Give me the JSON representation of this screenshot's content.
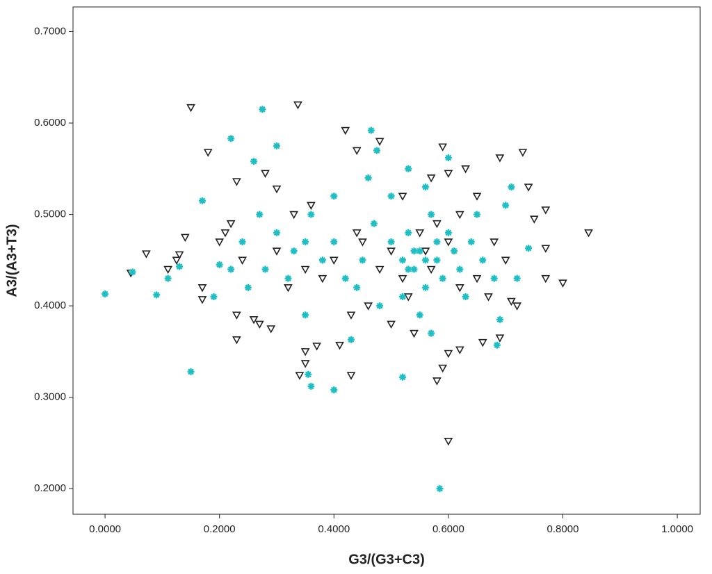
{
  "chart_data": {
    "type": "scatter",
    "xlabel": "G3/(G3+C3)",
    "ylabel": "A3/(A3+T3)",
    "xlim": [
      -0.056,
      1.04
    ],
    "ylim": [
      0.172,
      0.727
    ],
    "xticks": [
      {
        "value": 0,
        "label": "0.0000"
      },
      {
        "value": 0.2,
        "label": "0.2000"
      },
      {
        "value": 0.4,
        "label": "0.4000"
      },
      {
        "value": 0.6,
        "label": "0.6000"
      },
      {
        "value": 0.8,
        "label": "0.8000"
      },
      {
        "value": 1,
        "label": "1.0000"
      }
    ],
    "yticks": [
      {
        "value": 0.2,
        "label": "0.2000"
      },
      {
        "value": 0.3,
        "label": "0.3000"
      },
      {
        "value": 0.4,
        "label": "0.4000"
      },
      {
        "value": 0.5,
        "label": "0.5000"
      },
      {
        "value": 0.6,
        "label": "0.6000"
      },
      {
        "value": 0.7,
        "label": "0.7000"
      }
    ],
    "grid": false,
    "series": [
      {
        "color": "#222222",
        "marker": "triangle-down",
        "x": [
          0.15,
          0.337,
          0.18,
          0.045,
          0.072,
          0.11,
          0.125,
          0.13,
          0.14,
          0.17,
          0.17,
          0.23,
          0.23,
          0.23,
          0.28,
          0.3,
          0.42,
          0.44,
          0.48,
          0.59,
          0.6,
          0.63,
          0.69,
          0.73,
          0.74,
          0.77,
          0.75,
          0.77,
          0.77,
          0.8,
          0.845,
          0.72,
          0.71,
          0.69,
          0.66,
          0.62,
          0.6,
          0.58,
          0.59,
          0.6,
          0.43,
          0.41,
          0.37,
          0.35,
          0.35,
          0.34,
          0.29,
          0.27,
          0.26,
          0.2,
          0.21,
          0.22,
          0.24,
          0.32,
          0.35,
          0.38,
          0.4,
          0.45,
          0.5,
          0.52,
          0.53,
          0.55,
          0.57,
          0.6,
          0.62,
          0.65,
          0.67,
          0.7,
          0.46,
          0.43,
          0.5,
          0.54,
          0.36,
          0.33,
          0.52,
          0.57,
          0.65,
          0.68,
          0.3,
          0.44,
          0.48,
          0.56,
          0.58,
          0.62
        ],
        "values": [
          0.617,
          0.62,
          0.568,
          0.436,
          0.457,
          0.44,
          0.45,
          0.456,
          0.475,
          0.42,
          0.407,
          0.363,
          0.39,
          0.536,
          0.545,
          0.528,
          0.592,
          0.57,
          0.58,
          0.574,
          0.545,
          0.55,
          0.562,
          0.568,
          0.53,
          0.505,
          0.495,
          0.463,
          0.43,
          0.425,
          0.48,
          0.4,
          0.405,
          0.365,
          0.36,
          0.352,
          0.348,
          0.318,
          0.332,
          0.252,
          0.324,
          0.357,
          0.356,
          0.35,
          0.337,
          0.324,
          0.375,
          0.38,
          0.385,
          0.47,
          0.48,
          0.49,
          0.45,
          0.42,
          0.44,
          0.43,
          0.45,
          0.47,
          0.46,
          0.43,
          0.41,
          0.48,
          0.44,
          0.47,
          0.5,
          0.43,
          0.41,
          0.45,
          0.4,
          0.39,
          0.38,
          0.37,
          0.51,
          0.5,
          0.52,
          0.54,
          0.52,
          0.47,
          0.46,
          0.48,
          0.44,
          0.46,
          0.49,
          0.42
        ]
      },
      {
        "color": "#1dbfc4",
        "marker": "asterisk",
        "x": [
          0.0,
          0.048,
          0.09,
          0.11,
          0.13,
          0.15,
          0.17,
          0.19,
          0.22,
          0.275,
          0.3,
          0.26,
          0.35,
          0.355,
          0.36,
          0.4,
          0.43,
          0.465,
          0.475,
          0.52,
          0.585,
          0.6,
          0.685,
          0.69,
          0.72,
          0.74,
          0.71,
          0.7,
          0.2,
          0.22,
          0.25,
          0.28,
          0.3,
          0.33,
          0.36,
          0.38,
          0.4,
          0.42,
          0.45,
          0.47,
          0.5,
          0.52,
          0.53,
          0.54,
          0.55,
          0.56,
          0.57,
          0.58,
          0.59,
          0.6,
          0.61,
          0.62,
          0.63,
          0.64,
          0.66,
          0.68,
          0.5,
          0.52,
          0.55,
          0.57,
          0.48,
          0.44,
          0.4,
          0.35,
          0.32,
          0.27,
          0.24,
          0.46,
          0.53,
          0.56,
          0.65,
          0.54,
          0.56,
          0.53,
          0.58
        ],
        "values": [
          0.413,
          0.437,
          0.412,
          0.43,
          0.443,
          0.328,
          0.515,
          0.41,
          0.583,
          0.615,
          0.575,
          0.558,
          0.39,
          0.325,
          0.312,
          0.308,
          0.363,
          0.592,
          0.57,
          0.322,
          0.2,
          0.562,
          0.357,
          0.385,
          0.43,
          0.463,
          0.53,
          0.51,
          0.445,
          0.44,
          0.42,
          0.44,
          0.48,
          0.46,
          0.5,
          0.45,
          0.47,
          0.43,
          0.45,
          0.49,
          0.47,
          0.45,
          0.48,
          0.44,
          0.46,
          0.42,
          0.5,
          0.45,
          0.43,
          0.48,
          0.46,
          0.44,
          0.41,
          0.47,
          0.45,
          0.43,
          0.52,
          0.41,
          0.39,
          0.37,
          0.4,
          0.42,
          0.52,
          0.47,
          0.43,
          0.5,
          0.47,
          0.54,
          0.55,
          0.53,
          0.5,
          0.46,
          0.45,
          0.44,
          0.47
        ]
      }
    ]
  }
}
